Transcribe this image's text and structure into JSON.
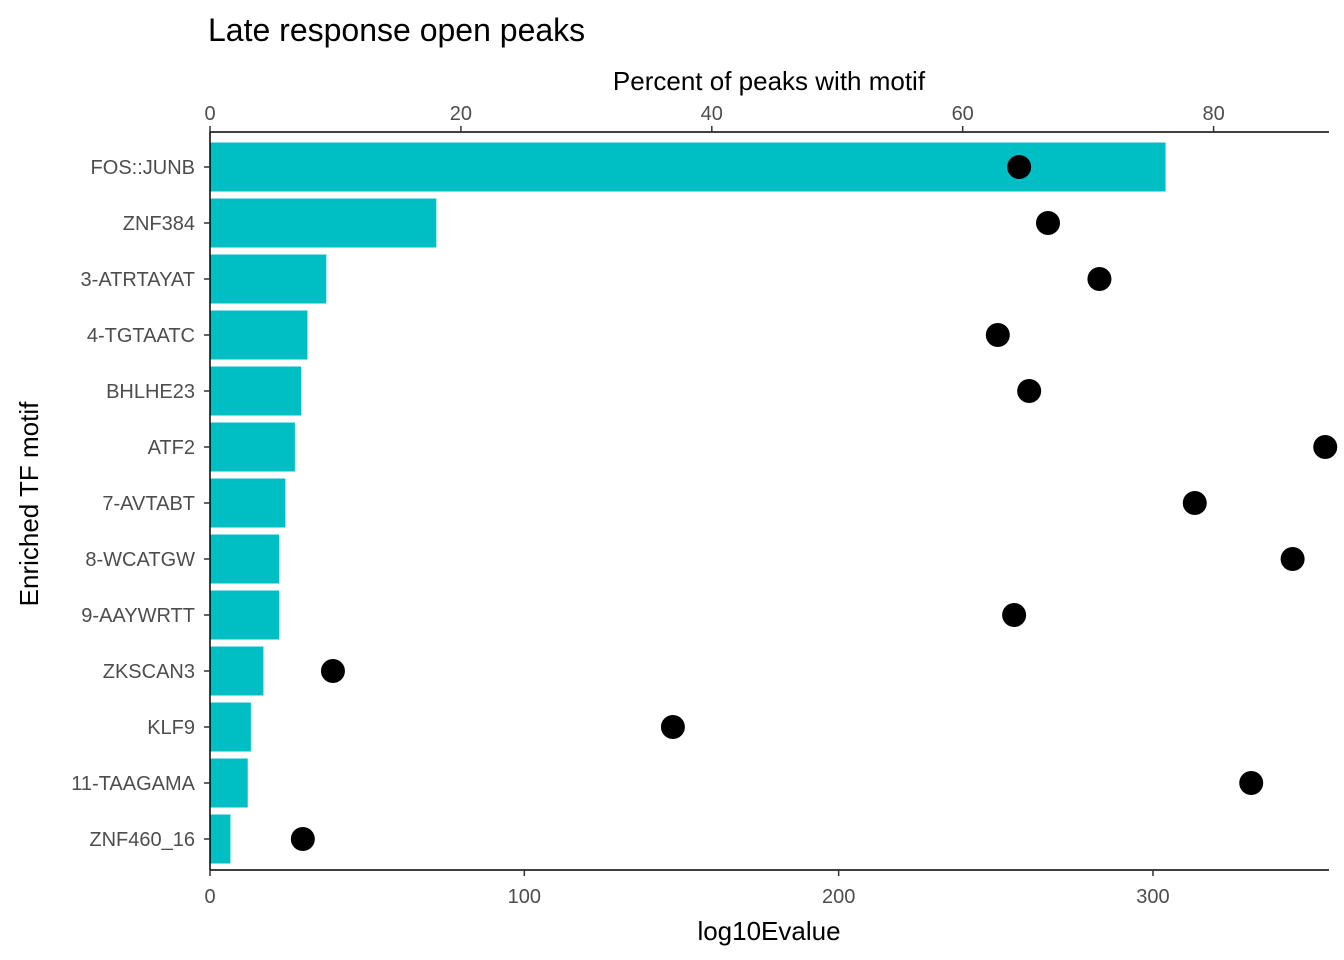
{
  "chart_data": {
    "type": "bar",
    "title": "Late response open peaks",
    "ylabel": "Enriched TF motif",
    "xlabel": "log10Evalue",
    "top_xlabel": "Percent of peaks with motif",
    "categories": [
      "FOS::JUNB",
      "ZNF384",
      "3-ATRTAYAT",
      "4-TGTAATC",
      "BHLHE23",
      "ATF2",
      "7-AVTABT",
      "8-WCATGW",
      "9-AAYWRTT",
      "ZKSCAN3",
      "KLF9",
      "11-TAAGAMA",
      "ZNF460_16"
    ],
    "series": [
      {
        "role": "bars",
        "axis": "bottom",
        "values": [
          304,
          72,
          37,
          31,
          29,
          27,
          24,
          22,
          22,
          17,
          13,
          12,
          6.5
        ]
      },
      {
        "role": "points",
        "axis": "top",
        "values": [
          64.5,
          66.8,
          70.9,
          62.8,
          65.3,
          88.9,
          78.5,
          86.3,
          64.1,
          9.8,
          36.9,
          83.0,
          7.4
        ]
      }
    ],
    "xlim": [
      0,
      356
    ],
    "xticks": [
      0,
      100,
      200,
      300
    ],
    "top_xlim": [
      0,
      89.2
    ],
    "top_xticks": [
      0,
      20,
      40,
      60,
      80
    ],
    "grid": false,
    "colors": {
      "bar": "#00BFC4",
      "point": "#000000",
      "axis": "#000000"
    }
  }
}
